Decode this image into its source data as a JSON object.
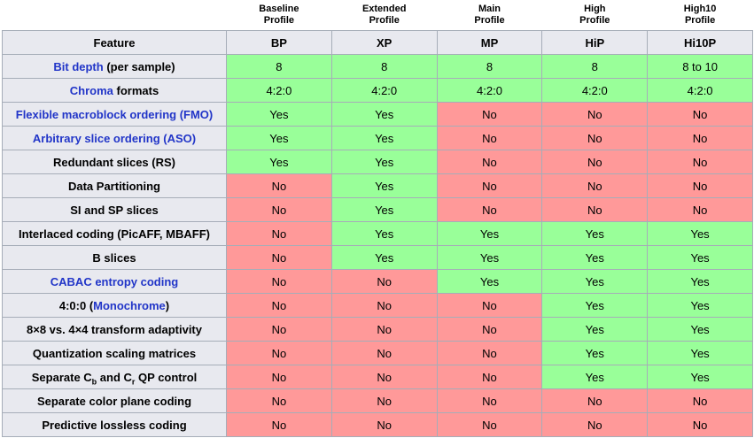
{
  "colors": {
    "yes_cell": "#99ff99",
    "no_cell": "#ff9999",
    "header_bg": "#e8e9ef",
    "grid_border": "#a6adb8",
    "link_blue": "#2135c8"
  },
  "chart_data": {
    "type": "table",
    "feature_header": "Feature",
    "profile_columns": [
      {
        "name_lines": [
          "Baseline",
          "Profile"
        ],
        "abbr": "BP"
      },
      {
        "name_lines": [
          "Extended",
          "Profile"
        ],
        "abbr": "XP"
      },
      {
        "name_lines": [
          "Main",
          "Profile"
        ],
        "abbr": "MP"
      },
      {
        "name_lines": [
          "High",
          "Profile"
        ],
        "abbr": "HiP"
      },
      {
        "name_lines": [
          "High10",
          "Profile"
        ],
        "abbr": "Hi10P"
      }
    ],
    "rows": [
      {
        "label_parts": [
          {
            "text": "Bit depth",
            "link": true
          },
          {
            "text": " (per sample)"
          }
        ],
        "values": [
          "8",
          "8",
          "8",
          "8",
          "8 to 10"
        ],
        "states": [
          "yes",
          "yes",
          "yes",
          "yes",
          "yes"
        ]
      },
      {
        "label_parts": [
          {
            "text": "Chroma",
            "link": true
          },
          {
            "text": " formats"
          }
        ],
        "values": [
          "4:2:0",
          "4:2:0",
          "4:2:0",
          "4:2:0",
          "4:2:0"
        ],
        "states": [
          "yes",
          "yes",
          "yes",
          "yes",
          "yes"
        ]
      },
      {
        "label_parts": [
          {
            "text": "Flexible macroblock ordering (FMO)",
            "link": true
          }
        ],
        "values": [
          "Yes",
          "Yes",
          "No",
          "No",
          "No"
        ],
        "states": [
          "yes",
          "yes",
          "no",
          "no",
          "no"
        ]
      },
      {
        "label_parts": [
          {
            "text": "Arbitrary slice ordering (ASO)",
            "link": true
          }
        ],
        "values": [
          "Yes",
          "Yes",
          "No",
          "No",
          "No"
        ],
        "states": [
          "yes",
          "yes",
          "no",
          "no",
          "no"
        ]
      },
      {
        "label_parts": [
          {
            "text": "Redundant slices (RS)"
          }
        ],
        "values": [
          "Yes",
          "Yes",
          "No",
          "No",
          "No"
        ],
        "states": [
          "yes",
          "yes",
          "no",
          "no",
          "no"
        ]
      },
      {
        "label_parts": [
          {
            "text": "Data Partitioning"
          }
        ],
        "values": [
          "No",
          "Yes",
          "No",
          "No",
          "No"
        ],
        "states": [
          "no",
          "yes",
          "no",
          "no",
          "no"
        ]
      },
      {
        "label_parts": [
          {
            "text": "SI and SP slices"
          }
        ],
        "values": [
          "No",
          "Yes",
          "No",
          "No",
          "No"
        ],
        "states": [
          "no",
          "yes",
          "no",
          "no",
          "no"
        ]
      },
      {
        "label_parts": [
          {
            "text": "Interlaced coding (PicAFF, MBAFF)"
          }
        ],
        "values": [
          "No",
          "Yes",
          "Yes",
          "Yes",
          "Yes"
        ],
        "states": [
          "no",
          "yes",
          "yes",
          "yes",
          "yes"
        ]
      },
      {
        "label_parts": [
          {
            "text": "B slices"
          }
        ],
        "values": [
          "No",
          "Yes",
          "Yes",
          "Yes",
          "Yes"
        ],
        "states": [
          "no",
          "yes",
          "yes",
          "yes",
          "yes"
        ]
      },
      {
        "label_parts": [
          {
            "text": "CABAC entropy coding",
            "link": true
          }
        ],
        "values": [
          "No",
          "No",
          "Yes",
          "Yes",
          "Yes"
        ],
        "states": [
          "no",
          "no",
          "yes",
          "yes",
          "yes"
        ]
      },
      {
        "label_parts": [
          {
            "text": "4:0:0 ("
          },
          {
            "text": "Monochrome",
            "link": true
          },
          {
            "text": ")"
          }
        ],
        "values": [
          "No",
          "No",
          "No",
          "Yes",
          "Yes"
        ],
        "states": [
          "no",
          "no",
          "no",
          "yes",
          "yes"
        ]
      },
      {
        "label_parts": [
          {
            "text": "8×8 vs. 4×4 transform adaptivity"
          }
        ],
        "values": [
          "No",
          "No",
          "No",
          "Yes",
          "Yes"
        ],
        "states": [
          "no",
          "no",
          "no",
          "yes",
          "yes"
        ]
      },
      {
        "label_parts": [
          {
            "text": "Quantization scaling matrices"
          }
        ],
        "values": [
          "No",
          "No",
          "No",
          "Yes",
          "Yes"
        ],
        "states": [
          "no",
          "no",
          "no",
          "yes",
          "yes"
        ]
      },
      {
        "label_parts": [
          {
            "text": "Separate C"
          },
          {
            "text": "b",
            "sub": true
          },
          {
            "text": " and C"
          },
          {
            "text": "r",
            "sub": true
          },
          {
            "text": " QP control"
          }
        ],
        "values": [
          "No",
          "No",
          "No",
          "Yes",
          "Yes"
        ],
        "states": [
          "no",
          "no",
          "no",
          "yes",
          "yes"
        ]
      },
      {
        "label_parts": [
          {
            "text": "Separate color plane coding"
          }
        ],
        "values": [
          "No",
          "No",
          "No",
          "No",
          "No"
        ],
        "states": [
          "no",
          "no",
          "no",
          "no",
          "no"
        ]
      },
      {
        "label_parts": [
          {
            "text": "Predictive lossless coding"
          }
        ],
        "values": [
          "No",
          "No",
          "No",
          "No",
          "No"
        ],
        "states": [
          "no",
          "no",
          "no",
          "no",
          "no"
        ]
      }
    ]
  }
}
